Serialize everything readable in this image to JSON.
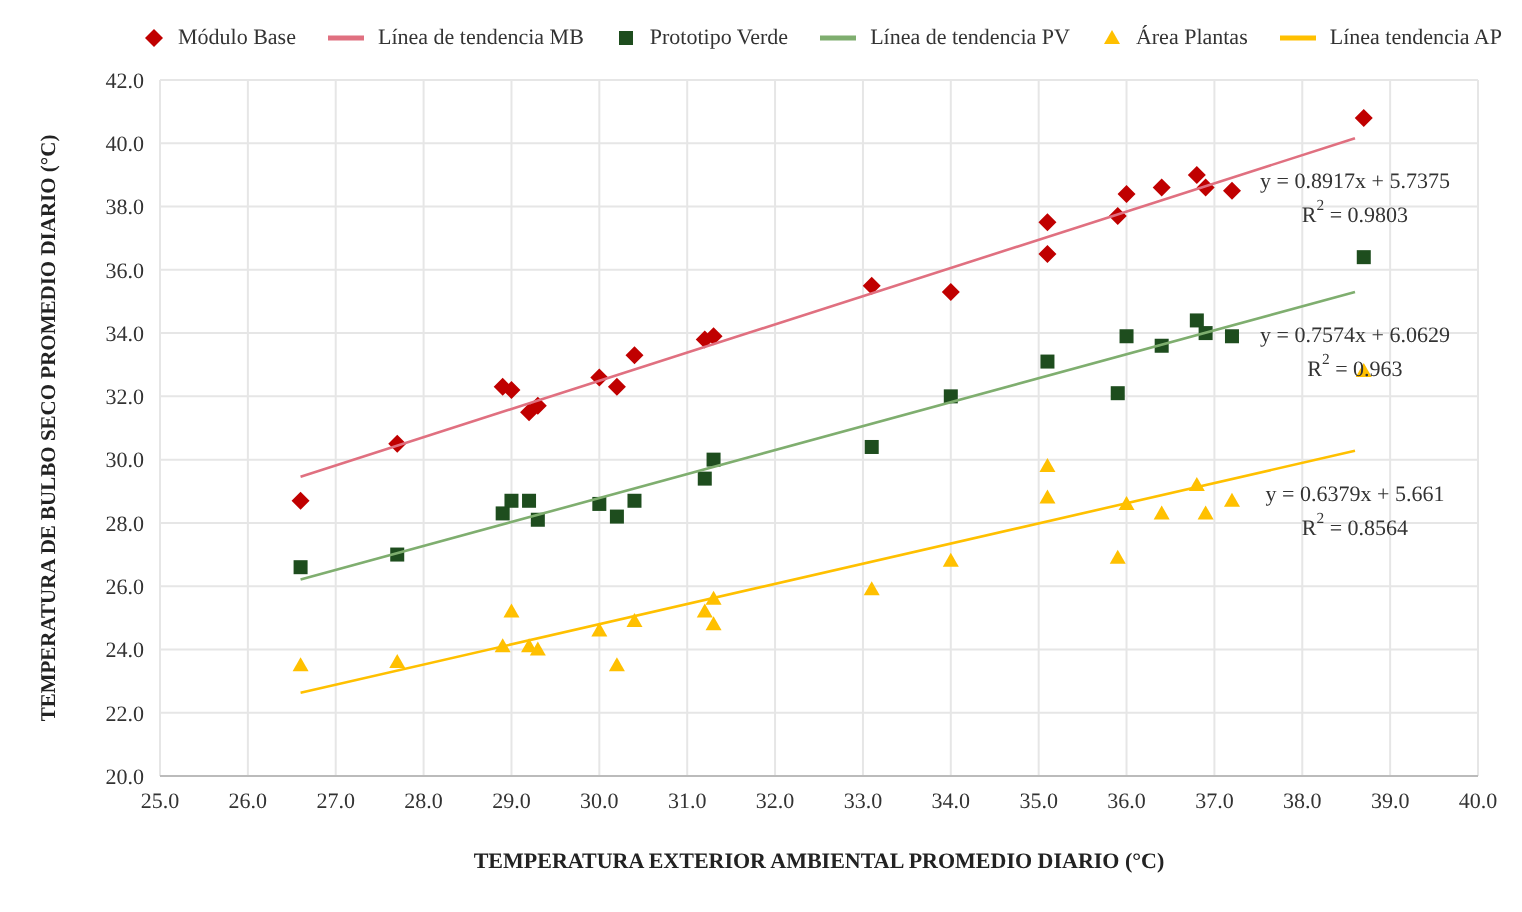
{
  "chart_data": {
    "type": "scatter",
    "xlabel": "TEMPERATURA EXTERIOR AMBIENTAL PROMEDIO DIARIO (°C)",
    "ylabel": "TEMPERATURA DE BULBO SECO PROMEDIO DIARIO (°C)",
    "xlim": [
      25,
      40
    ],
    "xticks": [
      {
        "value": 25,
        "label": "25.0"
      },
      {
        "value": 26,
        "label": "26.0"
      },
      {
        "value": 27,
        "label": "27.0"
      },
      {
        "value": 28,
        "label": "28.0"
      },
      {
        "value": 29,
        "label": "29.0"
      },
      {
        "value": 30,
        "label": "30.0"
      },
      {
        "value": 31,
        "label": "31.0"
      },
      {
        "value": 32,
        "label": "32.0"
      },
      {
        "value": 33,
        "label": "33.0"
      },
      {
        "value": 34,
        "label": "34.0"
      },
      {
        "value": 35,
        "label": "35.0"
      },
      {
        "value": 36,
        "label": "36.0"
      },
      {
        "value": 37,
        "label": "37.0"
      },
      {
        "value": 38,
        "label": "38.0"
      },
      {
        "value": 39,
        "label": "39.0"
      },
      {
        "value": 40,
        "label": "40.0"
      }
    ],
    "ylim": [
      20,
      42
    ],
    "yticks": [
      {
        "value": 20,
        "label": "20.0"
      },
      {
        "value": 22,
        "label": "22.0"
      },
      {
        "value": 24,
        "label": "24.0"
      },
      {
        "value": 26,
        "label": "26.0"
      },
      {
        "value": 28,
        "label": "28.0"
      },
      {
        "value": 30,
        "label": "30.0"
      },
      {
        "value": 32,
        "label": "32.0"
      },
      {
        "value": 34,
        "label": "34.0"
      },
      {
        "value": 36,
        "label": "36.0"
      },
      {
        "value": 38,
        "label": "38.0"
      },
      {
        "value": 40,
        "label": "40.0"
      },
      {
        "value": 42,
        "label": "42.0"
      }
    ],
    "grid": true,
    "legend": "top",
    "series": [
      {
        "name": "Módulo Base",
        "marker": "diamond",
        "color": "#c00000",
        "x": [
          26.6,
          27.7,
          28.9,
          29.0,
          29.2,
          29.3,
          30.0,
          30.2,
          30.4,
          31.2,
          31.3,
          33.1,
          34.0,
          35.1,
          35.1,
          35.9,
          36.0,
          36.4,
          36.8,
          36.9,
          37.2,
          38.7
        ],
        "values": [
          28.7,
          30.5,
          32.3,
          32.2,
          31.5,
          31.7,
          32.6,
          32.3,
          33.3,
          33.8,
          33.9,
          35.5,
          35.3,
          37.5,
          36.5,
          37.7,
          38.4,
          38.6,
          39.0,
          38.6,
          38.5,
          40.8
        ]
      },
      {
        "name": "Línea de tendencia MB",
        "type": "line",
        "marker": "none",
        "color": "#e07080",
        "x": [
          26.6,
          38.6
        ],
        "values": [
          29.46,
          40.16
        ]
      },
      {
        "name": "Prototipo Verde",
        "marker": "square",
        "color": "#1e4d1e",
        "x": [
          26.6,
          27.7,
          28.9,
          29.0,
          29.2,
          29.3,
          30.0,
          30.2,
          30.4,
          31.2,
          31.3,
          33.1,
          34.0,
          35.1,
          35.9,
          36.0,
          36.4,
          36.8,
          36.9,
          37.2,
          38.7
        ],
        "values": [
          26.6,
          27.0,
          28.3,
          28.7,
          28.7,
          28.1,
          28.6,
          28.2,
          28.7,
          29.4,
          30.0,
          30.4,
          32.0,
          33.1,
          32.1,
          33.9,
          33.6,
          34.4,
          34.0,
          33.9,
          36.4
        ]
      },
      {
        "name": "Línea de tendencia PV",
        "type": "line",
        "marker": "none",
        "color": "#7fae6f",
        "x": [
          26.6,
          38.6
        ],
        "values": [
          26.21,
          35.3
        ]
      },
      {
        "name": "Área Plantas",
        "marker": "triangle",
        "color": "#ffc000",
        "x": [
          26.6,
          27.7,
          28.9,
          29.0,
          29.2,
          29.3,
          30.0,
          30.2,
          30.4,
          31.2,
          31.3,
          31.3,
          33.1,
          34.0,
          35.1,
          35.1,
          35.9,
          36.0,
          36.4,
          36.8,
          36.9,
          37.2,
          38.7
        ],
        "values": [
          23.5,
          23.6,
          24.1,
          25.2,
          24.1,
          24.0,
          24.6,
          23.5,
          24.9,
          25.2,
          25.6,
          24.8,
          25.9,
          26.8,
          28.8,
          29.8,
          26.9,
          28.6,
          28.3,
          29.2,
          28.3,
          28.7,
          32.8
        ]
      },
      {
        "name": "Línea tendencia AP",
        "type": "line",
        "marker": "none",
        "color": "#ffc000",
        "x": [
          26.6,
          38.6
        ],
        "values": [
          22.63,
          30.28
        ]
      }
    ],
    "annotations": [
      "y = 0.8917x + 5.7375",
      "R$^{2}$ = 0.9803",
      "y = 0.7574x + 6.0629",
      "R$^{2}$ = 0.963",
      "y = 0.6379x + 5.661",
      "R$^{2}$ = 0.8564"
    ]
  }
}
